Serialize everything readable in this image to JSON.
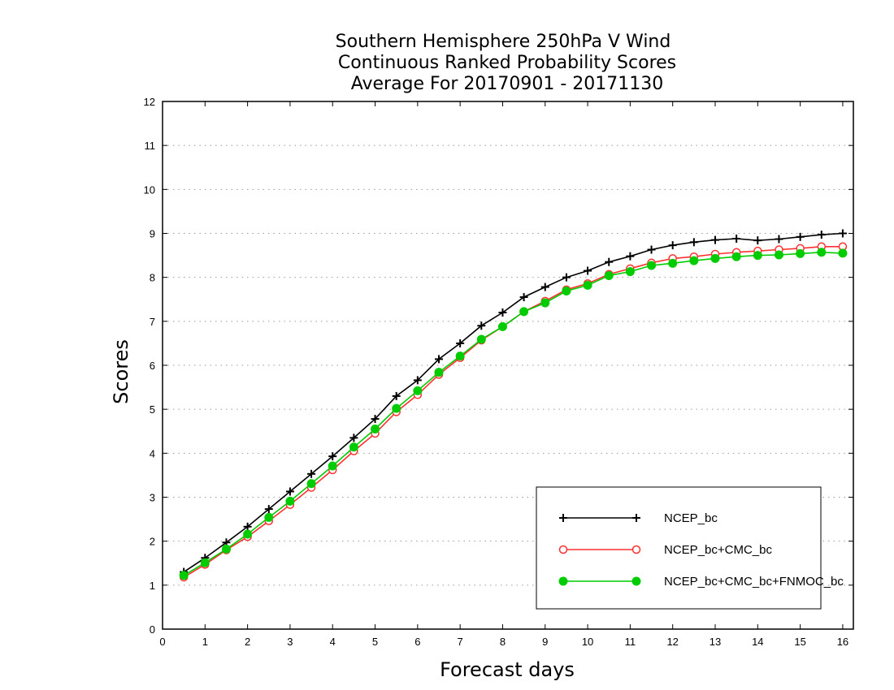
{
  "chart_data": {
    "type": "line",
    "title": [
      "Southern Hemisphere 250hPa V Wind",
      "Continuous Ranked Probability Scores",
      "Average For 20170901 - 20171130"
    ],
    "xlabel": "Forecast days",
    "ylabel": "Scores",
    "xlim": [
      0,
      16.25
    ],
    "ylim": [
      0,
      12
    ],
    "xticks": [
      0,
      1,
      2,
      3,
      4,
      5,
      6,
      7,
      8,
      9,
      10,
      11,
      12,
      13,
      14,
      15,
      16
    ],
    "yticks": [
      0,
      1,
      2,
      3,
      4,
      5,
      6,
      7,
      8,
      9,
      10,
      11,
      12
    ],
    "grid": "horizontal dotted",
    "legend_position": "bottom-right",
    "x": [
      0.5,
      1,
      1.5,
      2,
      2.5,
      3,
      3.5,
      4,
      4.5,
      5,
      5.5,
      6,
      6.5,
      7,
      7.5,
      8,
      8.5,
      9,
      9.5,
      10,
      10.5,
      11,
      11.5,
      12,
      12.5,
      13,
      13.5,
      14,
      14.5,
      15,
      15.5,
      16
    ],
    "series": [
      {
        "name": "NCEP_bc",
        "color": "#000000",
        "marker": "plus",
        "values": [
          1.3,
          1.62,
          1.97,
          2.33,
          2.73,
          3.13,
          3.53,
          3.93,
          4.35,
          4.78,
          5.3,
          5.66,
          6.14,
          6.5,
          6.9,
          7.2,
          7.55,
          7.78,
          8.0,
          8.15,
          8.35,
          8.48,
          8.63,
          8.73,
          8.8,
          8.85,
          8.88,
          8.84,
          8.87,
          8.92,
          8.97,
          9.0
        ]
      },
      {
        "name": "NCEP_bc+CMC_bc",
        "color": "#ff3030",
        "marker": "open-circle",
        "values": [
          1.18,
          1.47,
          1.8,
          2.1,
          2.46,
          2.83,
          3.22,
          3.62,
          4.05,
          4.45,
          4.94,
          5.33,
          5.79,
          6.17,
          6.57,
          6.88,
          7.22,
          7.46,
          7.72,
          7.86,
          8.07,
          8.2,
          8.33,
          8.43,
          8.47,
          8.53,
          8.57,
          8.6,
          8.63,
          8.66,
          8.7,
          8.7
        ]
      },
      {
        "name": "NCEP_bc+CMC_bc+FNMOC_bc",
        "color": "#00cc00",
        "marker": "filled-circle",
        "values": [
          1.22,
          1.51,
          1.82,
          2.16,
          2.54,
          2.91,
          3.31,
          3.71,
          4.14,
          4.55,
          5.02,
          5.42,
          5.84,
          6.21,
          6.59,
          6.88,
          7.22,
          7.42,
          7.69,
          7.82,
          8.04,
          8.13,
          8.27,
          8.32,
          8.38,
          8.43,
          8.47,
          8.5,
          8.51,
          8.54,
          8.57,
          8.55
        ]
      }
    ]
  }
}
